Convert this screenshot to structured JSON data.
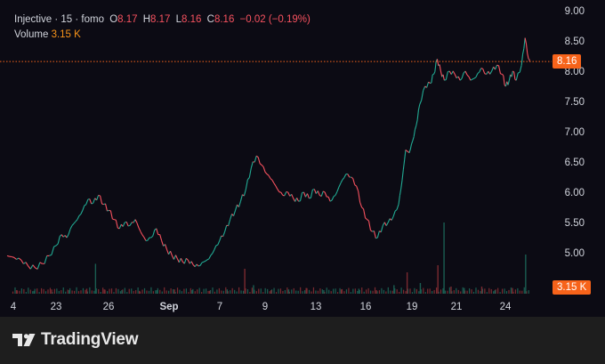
{
  "legend": {
    "symbol": "Injective · 15 · fomo",
    "open_label": "O",
    "open_value": "8.17",
    "high_label": "H",
    "high_value": "8.17",
    "low_label": "L",
    "low_value": "8.16",
    "close_label": "C",
    "close_value": "8.16",
    "change": "−0.02 (−0.19%)",
    "volume_label": "Volume",
    "volume_value": "3.15 K"
  },
  "current_price_tag": "8.16",
  "current_volume_tag": "3.15 K",
  "branding": {
    "name": "TradingView"
  },
  "colors": {
    "background": "#0c0b14",
    "footer": "#1e1e1e",
    "up": "#22ab94",
    "down": "#f7525f",
    "price_line": "#f7631a",
    "volume_up": "#1b5e52",
    "volume_down": "#7a2a30"
  },
  "chart_data": {
    "type": "line",
    "y_axis_ticks": [
      "9.00",
      "8.50",
      "8.00",
      "7.50",
      "7.00",
      "6.50",
      "6.00",
      "5.50",
      "5.00"
    ],
    "x_axis_ticks": [
      "4",
      "23",
      "26",
      "Sep",
      "7",
      "9",
      "13",
      "16",
      "19",
      "21",
      "24"
    ],
    "ylim": [
      4.4,
      9.0
    ],
    "current_price": 8.16,
    "price_series": [
      [
        0,
        4.95
      ],
      [
        8,
        4.92
      ],
      [
        16,
        4.88
      ],
      [
        24,
        4.78
      ],
      [
        32,
        4.75
      ],
      [
        40,
        4.82
      ],
      [
        48,
        4.95
      ],
      [
        56,
        5.12
      ],
      [
        62,
        5.3
      ],
      [
        68,
        5.25
      ],
      [
        74,
        5.45
      ],
      [
        80,
        5.55
      ],
      [
        86,
        5.7
      ],
      [
        92,
        5.88
      ],
      [
        98,
        5.82
      ],
      [
        104,
        5.95
      ],
      [
        110,
        5.8
      ],
      [
        116,
        5.7
      ],
      [
        122,
        5.55
      ],
      [
        128,
        5.4
      ],
      [
        134,
        5.5
      ],
      [
        140,
        5.45
      ],
      [
        146,
        5.55
      ],
      [
        152,
        5.35
      ],
      [
        158,
        5.2
      ],
      [
        164,
        5.25
      ],
      [
        170,
        5.4
      ],
      [
        176,
        5.2
      ],
      [
        182,
        5.05
      ],
      [
        188,
        4.95
      ],
      [
        194,
        4.9
      ],
      [
        200,
        4.85
      ],
      [
        206,
        4.88
      ],
      [
        212,
        4.8
      ],
      [
        218,
        4.78
      ],
      [
        224,
        4.85
      ],
      [
        230,
        4.9
      ],
      [
        236,
        5.05
      ],
      [
        242,
        5.2
      ],
      [
        248,
        5.35
      ],
      [
        254,
        5.55
      ],
      [
        260,
        5.7
      ],
      [
        266,
        5.85
      ],
      [
        272,
        6.05
      ],
      [
        278,
        6.4
      ],
      [
        284,
        6.6
      ],
      [
        290,
        6.45
      ],
      [
        296,
        6.3
      ],
      [
        302,
        6.2
      ],
      [
        308,
        6.05
      ],
      [
        314,
        5.95
      ],
      [
        320,
        6.0
      ],
      [
        326,
        5.9
      ],
      [
        332,
        5.85
      ],
      [
        338,
        6.0
      ],
      [
        344,
        5.9
      ],
      [
        350,
        6.05
      ],
      [
        356,
        5.95
      ],
      [
        362,
        6.0
      ],
      [
        368,
        5.85
      ],
      [
        374,
        5.95
      ],
      [
        380,
        6.15
      ],
      [
        386,
        6.3
      ],
      [
        392,
        6.25
      ],
      [
        398,
        6.1
      ],
      [
        404,
        5.75
      ],
      [
        410,
        5.55
      ],
      [
        416,
        5.35
      ],
      [
        422,
        5.25
      ],
      [
        428,
        5.45
      ],
      [
        434,
        5.5
      ],
      [
        440,
        5.6
      ],
      [
        446,
        5.8
      ],
      [
        450,
        6.2
      ],
      [
        454,
        6.7
      ],
      [
        458,
        6.65
      ],
      [
        462,
        6.85
      ],
      [
        466,
        7.1
      ],
      [
        470,
        7.45
      ],
      [
        476,
        7.75
      ],
      [
        482,
        7.8
      ],
      [
        486,
        7.95
      ],
      [
        490,
        8.2
      ],
      [
        494,
        8.0
      ],
      [
        498,
        7.85
      ],
      [
        504,
        8.0
      ],
      [
        510,
        7.95
      ],
      [
        516,
        7.85
      ],
      [
        522,
        8.0
      ],
      [
        528,
        7.85
      ],
      [
        534,
        7.9
      ],
      [
        540,
        8.05
      ],
      [
        546,
        7.95
      ],
      [
        552,
        8.0
      ],
      [
        558,
        8.1
      ],
      [
        564,
        7.95
      ],
      [
        568,
        7.75
      ],
      [
        572,
        7.85
      ],
      [
        576,
        8.0
      ],
      [
        580,
        7.85
      ],
      [
        586,
        8.1
      ],
      [
        590,
        8.55
      ],
      [
        594,
        8.2
      ],
      [
        596,
        8.16
      ]
    ],
    "volume_series": [
      [
        10,
        0.05
      ],
      [
        30,
        0.04
      ],
      [
        50,
        0.06
      ],
      [
        70,
        0.05
      ],
      [
        90,
        0.07
      ],
      [
        100,
        0.42
      ],
      [
        110,
        0.06
      ],
      [
        130,
        0.05
      ],
      [
        150,
        0.04
      ],
      [
        170,
        0.05
      ],
      [
        190,
        0.06
      ],
      [
        210,
        0.05
      ],
      [
        230,
        0.04
      ],
      [
        250,
        0.06
      ],
      [
        270,
        0.35
      ],
      [
        280,
        0.12
      ],
      [
        300,
        0.05
      ],
      [
        320,
        0.06
      ],
      [
        340,
        0.08
      ],
      [
        360,
        0.05
      ],
      [
        380,
        0.06
      ],
      [
        400,
        0.07
      ],
      [
        420,
        0.05
      ],
      [
        440,
        0.12
      ],
      [
        455,
        0.3
      ],
      [
        470,
        0.15
      ],
      [
        490,
        0.4
      ],
      [
        497,
        1.0
      ],
      [
        505,
        0.1
      ],
      [
        520,
        0.08
      ],
      [
        540,
        0.1
      ],
      [
        555,
        0.05
      ],
      [
        575,
        0.08
      ],
      [
        590,
        0.55
      ]
    ]
  }
}
